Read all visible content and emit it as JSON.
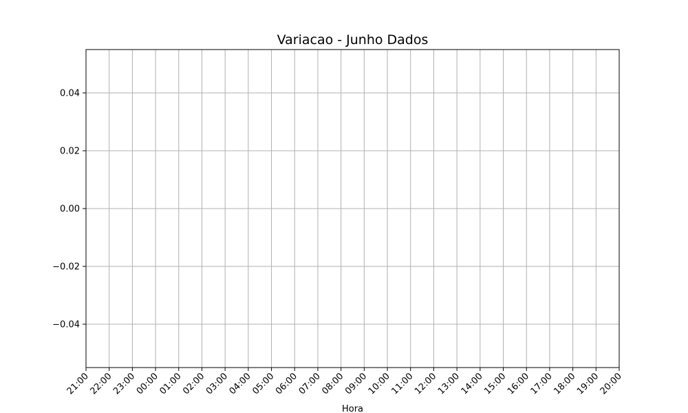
{
  "chart_data": {
    "type": "line",
    "title": "Variacao - Junho Dados",
    "xlabel": "Hora",
    "ylabel": "",
    "x_ticks": [
      "21:00",
      "22:00",
      "23:00",
      "00:00",
      "01:00",
      "02:00",
      "03:00",
      "04:00",
      "05:00",
      "06:00",
      "07:00",
      "08:00",
      "09:00",
      "10:00",
      "11:00",
      "12:00",
      "13:00",
      "14:00",
      "15:00",
      "16:00",
      "17:00",
      "18:00",
      "19:00",
      "20:00"
    ],
    "y_ticks": [
      "−0.04",
      "−0.02",
      "0.00",
      "0.02",
      "0.04"
    ],
    "y_tick_values": [
      -0.04,
      -0.02,
      0.0,
      0.02,
      0.04
    ],
    "ylim": [
      -0.055,
      0.055
    ],
    "grid": true,
    "series": [],
    "colors": {
      "grid": "#b0b0b0",
      "axes": "#000000",
      "background": "#ffffff"
    }
  }
}
